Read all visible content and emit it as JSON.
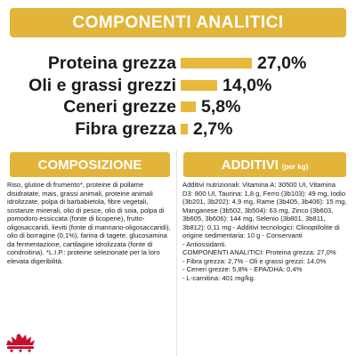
{
  "colors": {
    "accent": "#E2B43A",
    "bar": "#E6B93C",
    "text": "#1a1a1a"
  },
  "header": {
    "title": "COMPONENTI ANALITICI"
  },
  "analytics": [
    {
      "label": "Proteina grezza",
      "value": "27,0%",
      "fraction": 0.27
    },
    {
      "label": "Oli e grassi grezzi",
      "value": "14,0%",
      "fraction": 0.14
    },
    {
      "label": "Ceneri grezze",
      "value": "5,8%",
      "fraction": 0.058
    },
    {
      "label": "Fibra grezza",
      "value": "2,7%",
      "fraction": 0.027
    }
  ],
  "composition": {
    "title": "COMPOSIZIONE",
    "text": "Riso, glutine di frumento*, proteine di pollame disidratate, mais, grassi animali, proteine animali idrolizzate, polpa di barbabietola, fibre vegetali, sostanze minerali, olio di pesce, olio di soia, polpa di pomodoro essiccata (fonte di licopene), frutto-oligosaccaridi, lieviti (fonte di mannano-oligosaccaridi), olio di borragine (0,1%), farina di tagete, glucosamina da fermentazione, cartilagine idrolizzata (fonte di condroitina). *L.I.P.: proteine selezionate per la loro elevata digeribilità."
  },
  "additives": {
    "title": "ADDITIVI",
    "unit": "(per kg)",
    "lines": [
      "Additivi nutrizionali: Vitamina A: 30500 UI, Vitamina",
      "D3: 800 UI, Taurina: 1,8 g, Ferro (3b103): 49 mg, Iodio",
      "(3b201, 3b202): 4,9 mg, Rame (3b405, 3b406): 15 mg,",
      "Manganese (3b502, 3b504): 63 mg, Zinco (3b603,",
      "3b605, 3b606): 144 mg, Selenio (3b801, 3b811,",
      "3b812): 0,11 mg - Additivi tecnologici: Clinoptilolite di",
      "origine sedimentaria: 10 g - Conservanti",
      "- Antiossidanti.",
      "COMPONENTI ANALITICI: Proteina grezza: 27,0%",
      "- Fibra grezza: 2,7% - Oli e grassi grezzi: 14,0%",
      "- Ceneri grezze: 5,8% - EPA/DHA: 0,4%",
      "- L-carnitina: 401 mg/kg."
    ]
  }
}
